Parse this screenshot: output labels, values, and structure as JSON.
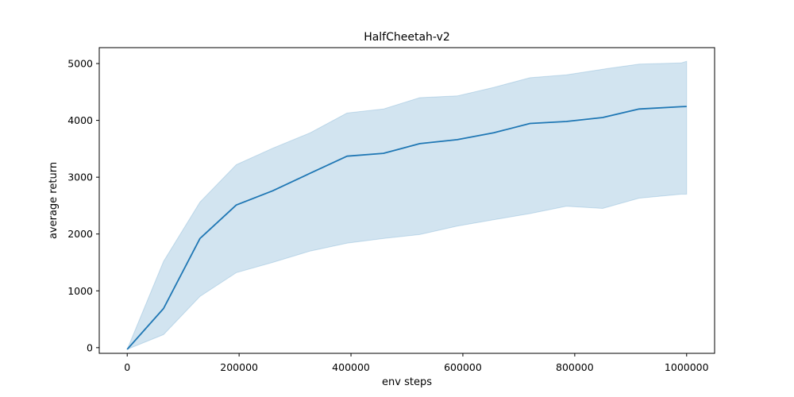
{
  "chart_data": {
    "type": "line",
    "title": "HalfCheetah-v2",
    "xlabel": "env steps",
    "ylabel": "average return",
    "xlim": [
      -50000,
      1050000
    ],
    "ylim": [
      -100,
      5280
    ],
    "xticks": [
      0,
      200000,
      400000,
      600000,
      800000,
      1000000
    ],
    "xtick_labels": [
      "0",
      "200000",
      "400000",
      "600000",
      "800000",
      "1000000"
    ],
    "yticks": [
      0,
      1000,
      2000,
      3000,
      4000,
      5000
    ],
    "ytick_labels": [
      "0",
      "1000",
      "2000",
      "3000",
      "4000",
      "5000"
    ],
    "grid": false,
    "legend": "none",
    "colors": {
      "line": "#1f77b4",
      "band": "#1f77b4",
      "band_opacity": 0.2
    },
    "series": [
      {
        "x": [
          0,
          65000,
          130000,
          195000,
          260000,
          327000,
          393000,
          458000,
          523000,
          590000,
          655000,
          720000,
          785000,
          850000,
          915000,
          990000,
          1000000
        ],
        "y": [
          -30,
          690,
          1920,
          2510,
          2760,
          3070,
          3370,
          3420,
          3590,
          3660,
          3780,
          3945,
          3980,
          4050,
          4200,
          4240,
          4245
        ],
        "lower": [
          -30,
          230,
          900,
          1320,
          1500,
          1700,
          1840,
          1920,
          1990,
          2140,
          2250,
          2360,
          2490,
          2450,
          2630,
          2700,
          2700
        ],
        "upper": [
          -30,
          1520,
          2560,
          3220,
          3510,
          3780,
          4130,
          4200,
          4400,
          4430,
          4580,
          4750,
          4800,
          4900,
          4990,
          5010,
          5040
        ]
      }
    ]
  }
}
